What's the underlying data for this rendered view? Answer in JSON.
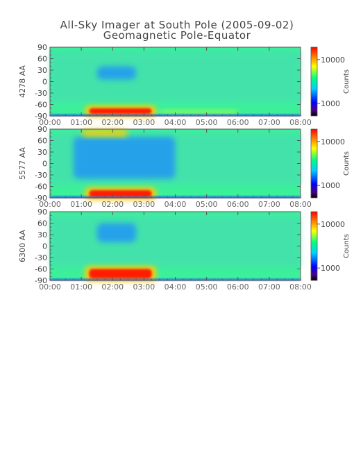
{
  "header": {
    "title": "All-Sky Imager at South Pole (2005-09-02)",
    "subtitle": "Geomagnetic Pole-Equator"
  },
  "chart_data": [
    {
      "type": "heatmap",
      "ylabel": "4278 AA",
      "colorbar_label": "Counts",
      "colorbar_ticks": [
        "10000",
        "1000"
      ],
      "colorbar_scale": "log",
      "x_ticks": [
        "00:00",
        "01:00",
        "02:00",
        "03:00",
        "04:00",
        "05:00",
        "06:00",
        "07:00",
        "08:00"
      ],
      "xlim": [
        "00:00",
        "08:00"
      ],
      "y_ticks": [
        "90",
        "60",
        "30",
        "0",
        "-30",
        "-60",
        "-90"
      ],
      "ylim": [
        -90,
        90
      ],
      "features": [
        {
          "desc": "intense auroral band",
          "x": [
            "01:15",
            "03:15"
          ],
          "y": [
            -85,
            -70
          ],
          "level": "max"
        },
        {
          "desc": "weaker band",
          "x": [
            "03:30",
            "06:00"
          ],
          "y": [
            -85,
            -75
          ],
          "level": "medium"
        },
        {
          "desc": "dark patch",
          "x": [
            "01:30",
            "02:45"
          ],
          "y": [
            5,
            40
          ],
          "level": "low"
        }
      ]
    },
    {
      "type": "heatmap",
      "ylabel": "5577 AA",
      "colorbar_label": "Counts",
      "colorbar_ticks": [
        "10000",
        "1000"
      ],
      "colorbar_scale": "log",
      "x_ticks": [
        "00:00",
        "01:00",
        "02:00",
        "03:00",
        "04:00",
        "05:00",
        "06:00",
        "07:00",
        "08:00"
      ],
      "xlim": [
        "00:00",
        "08:00"
      ],
      "y_ticks": [
        "90",
        "60",
        "30",
        "0",
        "-30",
        "-60",
        "-90"
      ],
      "ylim": [
        -90,
        90
      ],
      "features": [
        {
          "desc": "intense auroral band",
          "x": [
            "01:15",
            "03:15"
          ],
          "y": [
            -88,
            -70
          ],
          "level": "max"
        },
        {
          "desc": "dark region",
          "x": [
            "00:45",
            "04:00"
          ],
          "y": [
            -40,
            70
          ],
          "level": "low"
        },
        {
          "desc": "yellow patches near pole",
          "x": [
            "01:00",
            "02:30"
          ],
          "y": [
            70,
            90
          ],
          "level": "high"
        }
      ]
    },
    {
      "type": "heatmap",
      "ylabel": "6300 AA",
      "colorbar_label": "Counts",
      "colorbar_ticks": [
        "10000",
        "1000"
      ],
      "colorbar_scale": "log",
      "x_ticks": [
        "00:00",
        "01:00",
        "02:00",
        "03:00",
        "04:00",
        "05:00",
        "06:00",
        "07:00",
        "08:00"
      ],
      "xlim": [
        "00:00",
        "08:00"
      ],
      "y_ticks": [
        "90",
        "60",
        "30",
        "0",
        "-30",
        "-60",
        "-90"
      ],
      "ylim": [
        -90,
        90
      ],
      "features": [
        {
          "desc": "intense auroral band",
          "x": [
            "01:15",
            "03:15"
          ],
          "y": [
            -85,
            -60
          ],
          "level": "max"
        },
        {
          "desc": "dark patch",
          "x": [
            "01:30",
            "02:45"
          ],
          "y": [
            10,
            60
          ],
          "level": "low"
        }
      ]
    }
  ]
}
